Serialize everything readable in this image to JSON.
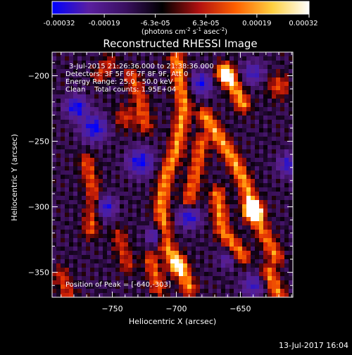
{
  "colorbar": {
    "ticks": [
      "-0.00032",
      "-0.00019",
      "-6.3e-05",
      "6.3e-05",
      "0.00019",
      "0.00032"
    ],
    "tick_values": [
      -0.00032,
      -0.00019,
      -6.3e-05,
      6.3e-05,
      0.00019,
      0.00032
    ],
    "range": [
      -0.00032,
      0.00032
    ],
    "units_main": "(photons cm",
    "units_exp1": "-2",
    "units_mid": " s",
    "units_exp2": "-1",
    "units_end": " asec",
    "units_exp3": "-2",
    "units_close": ")"
  },
  "chart_data": {
    "type": "heatmap",
    "title": "Reconstructed RHESSI Image",
    "xlabel": "Heliocentric X (arcsec)",
    "ylabel": "Heliocentric Y (arcsec)",
    "xlim": [
      -797,
      -609
    ],
    "ylim": [
      -369,
      -182
    ],
    "xticks": [
      -750,
      -700,
      -650
    ],
    "xtick_labels": [
      "−750",
      "−700",
      "−650"
    ],
    "yticks": [
      -200,
      -250,
      -300,
      -350
    ],
    "ytick_labels": [
      "−200",
      "−250",
      "−300",
      "−350"
    ],
    "colormap": [
      "#0000ff",
      "#5a1fa0",
      "#3a1060",
      "#000000",
      "#b01010",
      "#ff6000",
      "#ffd040",
      "#ffffff"
    ],
    "annotations": {
      "line1": "3-Jul-2015 21:26:36.000 to 21:38:36.000",
      "line2": "Detectors: 3F 5F 6F 7F 8F 9F, Att 0",
      "line3": "Energy Range: 25.0 - 50.0 keV",
      "line4": "Clean    Total counts: 1.95E+04",
      "peak": "Position of Peak = [-640,-303]"
    },
    "peak_position": [
      -640,
      -303
    ],
    "ridges": [
      {
        "points": [
          [
            -700,
            -187
          ],
          [
            -694,
            -225
          ],
          [
            -700,
            -256
          ],
          [
            -708,
            -276
          ],
          [
            -712,
            -300
          ],
          [
            -708,
            -330
          ],
          [
            -697,
            -345
          ],
          [
            -690,
            -362
          ]
        ],
        "amp": 0.95
      },
      {
        "points": [
          [
            -662,
            -196
          ],
          [
            -655,
            -208
          ],
          [
            -648,
            -222
          ]
        ],
        "amp": 1.0
      },
      {
        "points": [
          [
            -640,
            -303
          ],
          [
            -646,
            -283
          ],
          [
            -655,
            -265
          ],
          [
            -668,
            -245
          ],
          [
            -678,
            -230
          ]
        ],
        "amp": 1.0
      },
      {
        "points": [
          [
            -668,
            -290
          ],
          [
            -664,
            -318
          ],
          [
            -648,
            -338
          ]
        ],
        "amp": 0.9
      },
      {
        "points": [
          [
            -640,
            -303
          ],
          [
            -632,
            -320
          ],
          [
            -622,
            -338
          ]
        ],
        "amp": 0.85
      },
      {
        "points": [
          [
            -770,
            -265
          ],
          [
            -764,
            -292
          ],
          [
            -767,
            -318
          ]
        ],
        "amp": 0.7
      },
      {
        "points": [
          [
            -735,
            -200
          ],
          [
            -728,
            -218
          ],
          [
            -724,
            -238
          ]
        ],
        "amp": 0.7
      },
      {
        "points": [
          [
            -690,
            -295
          ],
          [
            -684,
            -270
          ],
          [
            -680,
            -250
          ]
        ],
        "amp": 0.8
      },
      {
        "points": [
          [
            -720,
            -340
          ],
          [
            -714,
            -362
          ]
        ],
        "amp": 0.75
      },
      {
        "points": [
          [
            -628,
            -350
          ],
          [
            -620,
            -368
          ]
        ],
        "amp": 0.9
      },
      {
        "points": [
          [
            -760,
            -200
          ],
          [
            -752,
            -190
          ]
        ],
        "amp": 0.55
      },
      {
        "points": [
          [
            -790,
            -352
          ],
          [
            -784,
            -368
          ]
        ],
        "amp": 0.6
      },
      {
        "points": [
          [
            -745,
            -322
          ],
          [
            -738,
            -345
          ]
        ],
        "amp": 0.55
      }
    ],
    "blobs": [
      {
        "x": -640,
        "y": -303,
        "amp": 1.3,
        "r": 5
      },
      {
        "x": -662,
        "y": -200,
        "amp": 0.9,
        "r": 5
      },
      {
        "x": -700,
        "y": -345,
        "amp": 0.8,
        "r": 5
      },
      {
        "x": -620,
        "y": -208,
        "amp": 0.7,
        "r": 6
      },
      {
        "x": -740,
        "y": -232,
        "amp": 0.6,
        "r": 6
      },
      {
        "x": -764,
        "y": -240,
        "amp": -1.0,
        "r": 7
      },
      {
        "x": -728,
        "y": -266,
        "amp": -1.0,
        "r": 7
      },
      {
        "x": -778,
        "y": -224,
        "amp": -1.0,
        "r": 6
      },
      {
        "x": -690,
        "y": -308,
        "amp": -0.9,
        "r": 6
      },
      {
        "x": -756,
        "y": -300,
        "amp": -0.9,
        "r": 6
      },
      {
        "x": -680,
        "y": -206,
        "amp": -0.9,
        "r": 6
      },
      {
        "x": -612,
        "y": -268,
        "amp": -0.8,
        "r": 6
      },
      {
        "x": -640,
        "y": -198,
        "amp": -0.7,
        "r": 6
      },
      {
        "x": -640,
        "y": -360,
        "amp": -0.7,
        "r": 6
      },
      {
        "x": -716,
        "y": -322,
        "amp": -0.8,
        "r": 5
      },
      {
        "x": -660,
        "y": -340,
        "amp": -0.5,
        "r": 5
      }
    ]
  },
  "footer": {
    "timestamp": "13-Jul-2017 16:04"
  }
}
